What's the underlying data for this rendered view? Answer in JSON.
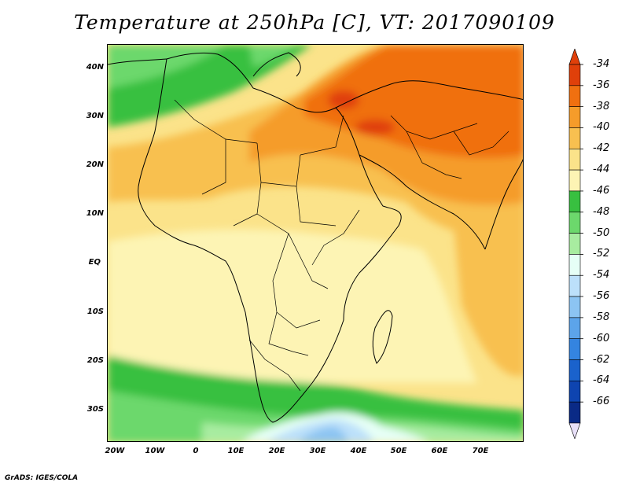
{
  "title": "Temperature at 250hPa [C], VT: 2017090109",
  "footer": "GrADS: IGES/COLA",
  "lat_labels": [
    "40N",
    "30N",
    "20N",
    "10N",
    "EQ",
    "10S",
    "20S",
    "30S"
  ],
  "lon_labels": [
    "20W",
    "10W",
    "0",
    "10E",
    "20E",
    "30E",
    "40E",
    "50E",
    "60E",
    "70E"
  ],
  "colorbar": {
    "labels": [
      "-34",
      "-36",
      "-38",
      "-40",
      "-42",
      "-44",
      "-46",
      "-48",
      "-50",
      "-52",
      "-54",
      "-56",
      "-58",
      "-60",
      "-62",
      "-64",
      "-66"
    ],
    "colors": [
      "#e0400a",
      "#f07010",
      "#f59c2a",
      "#f8c050",
      "#fbe38a",
      "#fdf4b4",
      "#38c040",
      "#6cd86c",
      "#a8eca0",
      "#e6fff6",
      "#bce0fa",
      "#8cc4f2",
      "#5ca4ea",
      "#3484e0",
      "#1a62cc",
      "#0e44b0",
      "#0a2a86"
    ]
  },
  "chart_data": {
    "type": "heatmap",
    "title": "Temperature at 250hPa [C], VT: 2017090109",
    "variable": "Temperature at 250hPa",
    "units": "C",
    "valid_time": "2017090109",
    "lon_range": [
      -22,
      82
    ],
    "lat_range": [
      -37,
      45
    ],
    "contour_levels": [
      -34,
      -36,
      -38,
      -40,
      -42,
      -44,
      -46,
      -48,
      -50,
      -52,
      -54,
      -56,
      -58,
      -60,
      -62,
      -64,
      -66
    ]
  }
}
